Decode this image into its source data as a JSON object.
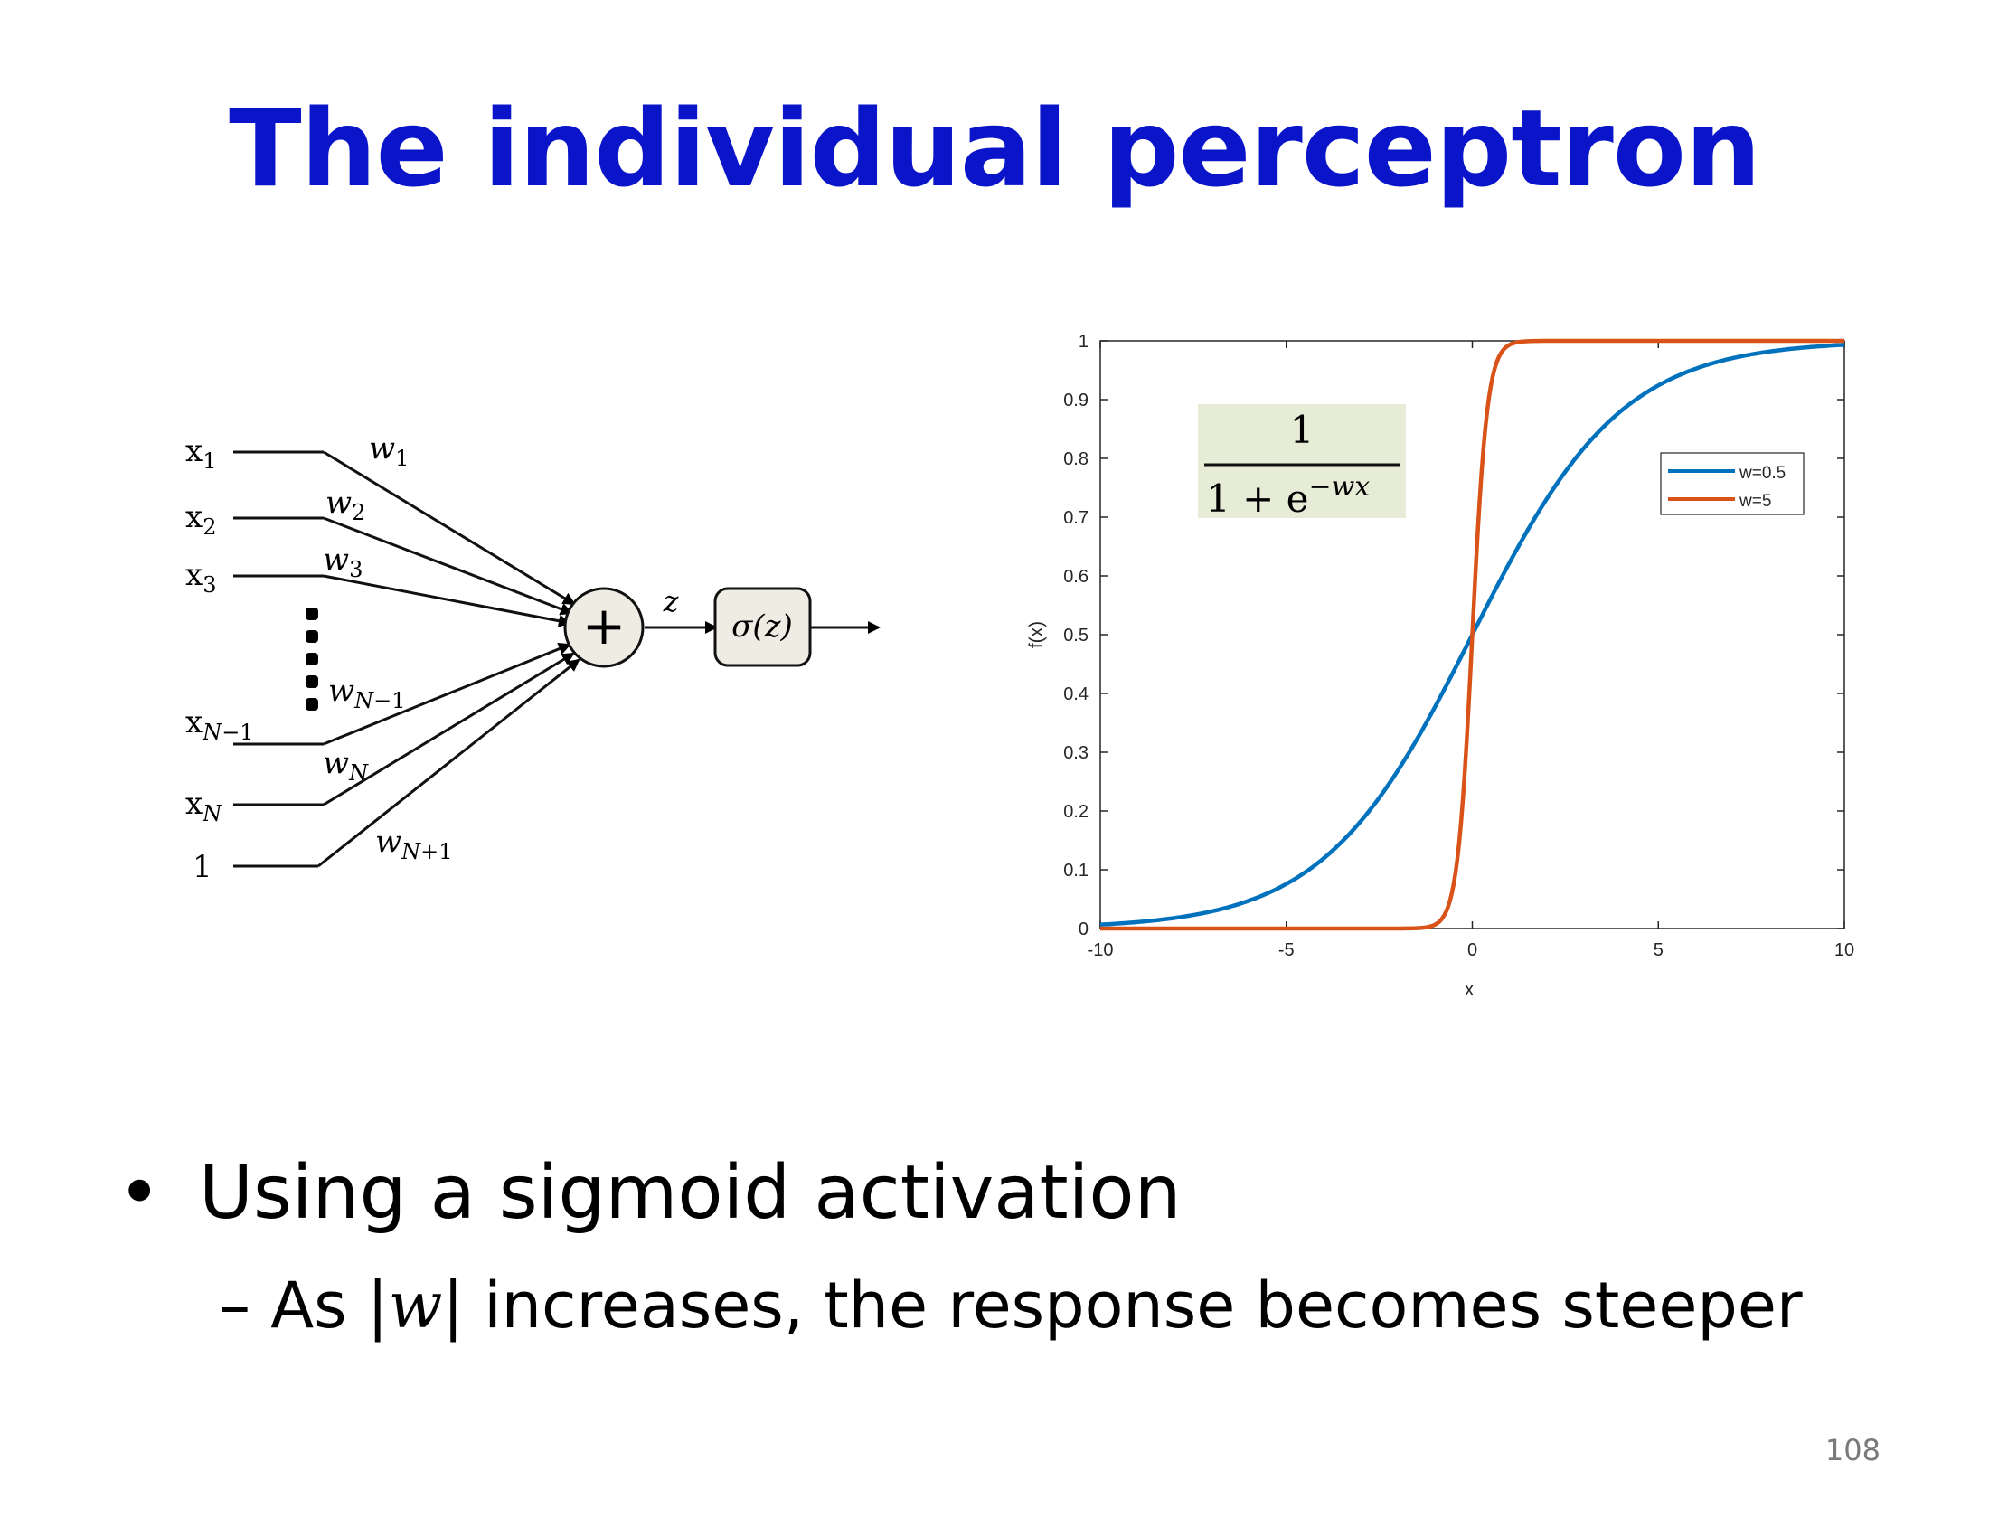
{
  "slide": {
    "title": "The individual perceptron",
    "bullet": "Using a sigmoid activation",
    "sub_dash": "–",
    "sub_pre": "As |",
    "sub_var": "w",
    "sub_post": "| increases, the response becomes steeper",
    "page_number": "108"
  },
  "diagram": {
    "inputs": [
      "x1",
      "x2",
      "x3",
      "xN−1",
      "xN",
      "1"
    ],
    "weights": [
      "w1",
      "w2",
      "w3",
      "wN−1",
      "wN",
      "wN+1"
    ],
    "sum_symbol": "+",
    "z_label": "z",
    "activation_label": "σ(z)"
  },
  "formula": {
    "numerator": "1",
    "denominator_base": "1 + e",
    "denominator_exp": "−wx",
    "background": "#e6ecd6"
  },
  "chart_data": {
    "type": "line",
    "xlabel": "x",
    "ylabel": "f(x)",
    "xlim": [
      -10,
      10
    ],
    "ylim": [
      0,
      1
    ],
    "xticks": [
      -10,
      -5,
      0,
      5,
      10
    ],
    "yticks": [
      0,
      0.1,
      0.2,
      0.3,
      0.4,
      0.5,
      0.6,
      0.7,
      0.8,
      0.9,
      1
    ],
    "legend_position": "top-right",
    "grid": false,
    "function": "1/(1+exp(-w*x))",
    "series": [
      {
        "name": "w=0.5",
        "w": 0.5,
        "color": "#0072bd",
        "x": [
          -10,
          -9,
          -8,
          -7,
          -6,
          -5,
          -4,
          -3,
          -2,
          -1,
          0,
          1,
          2,
          3,
          4,
          5,
          6,
          7,
          8,
          9,
          10
        ],
        "y": [
          0.0067,
          0.011,
          0.018,
          0.029,
          0.047,
          0.076,
          0.119,
          0.182,
          0.269,
          0.378,
          0.5,
          0.622,
          0.731,
          0.818,
          0.881,
          0.924,
          0.953,
          0.971,
          0.982,
          0.989,
          0.993
        ]
      },
      {
        "name": "w=5",
        "w": 5,
        "color": "#d95319",
        "x": [
          -10,
          -2,
          -1.5,
          -1,
          -0.75,
          -0.5,
          -0.25,
          0,
          0.25,
          0.5,
          0.75,
          1,
          1.5,
          2,
          10
        ],
        "y": [
          0,
          0,
          0.0006,
          0.0067,
          0.023,
          0.076,
          0.223,
          0.5,
          0.777,
          0.924,
          0.977,
          0.993,
          0.999,
          1,
          1
        ]
      }
    ]
  }
}
